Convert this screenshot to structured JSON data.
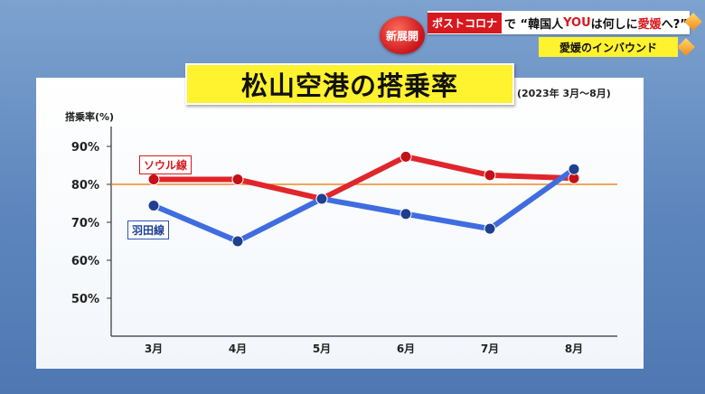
{
  "headline": {
    "badge": "新展開",
    "tag": "ポストコロナ",
    "text_before": "で “韓国人",
    "accent": "YOU",
    "text_after": "は何しに",
    "accent2": "愛媛",
    "text_end": "へ?”"
  },
  "subheadline": "愛媛のインバウンド",
  "chart_data": {
    "type": "line",
    "title": "松山空港の搭乗率",
    "subtitle": "(2023年 3月〜8月)",
    "ylabel": "搭乗率(%)",
    "xlabel": "",
    "categories": [
      "3月",
      "4月",
      "5月",
      "6月",
      "7月",
      "8月"
    ],
    "yticks": [
      "90%",
      "80%",
      "70%",
      "60%",
      "50%"
    ],
    "ylim": [
      40,
      95
    ],
    "grid": false,
    "reference_line": {
      "value": 80,
      "color": "#f08a2a"
    },
    "series": [
      {
        "name": "ソウル線",
        "values": [
          81.3,
          81.3,
          76.2,
          87.3,
          82.4,
          81.6
        ],
        "color": "#e0262b"
      },
      {
        "name": "羽田線",
        "values": [
          74.4,
          65.0,
          76.2,
          72.2,
          68.3,
          84.0
        ],
        "color": "#3f6de0"
      }
    ]
  }
}
